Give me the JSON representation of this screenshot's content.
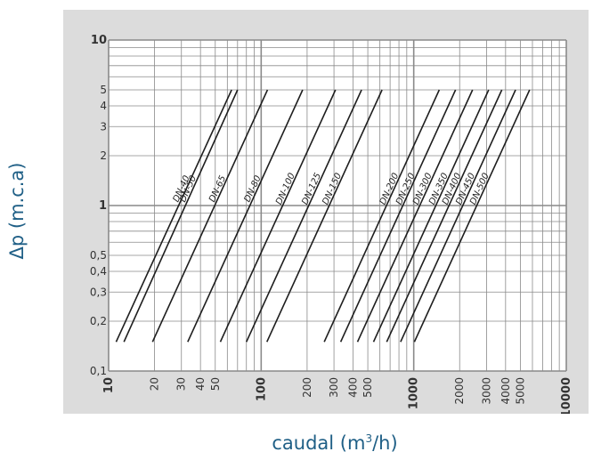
{
  "axes": {
    "ylabel": "Δp (m.c.a)",
    "xlabel_main": "caudal (m",
    "xlabel_sup": "3",
    "xlabel_end": "/h)"
  },
  "colors": {
    "panel": "#dcdcdc",
    "plot": "#ffffff",
    "grid": "#8a8a8a",
    "line": "#1e1e1e",
    "label": "#1f5f86"
  },
  "chart_data": {
    "type": "line",
    "title": "",
    "xlabel": "caudal (m3/h)",
    "ylabel": "Δp (m.c.a)",
    "xscale": "log",
    "yscale": "log",
    "xlim": [
      10,
      10000
    ],
    "ylim": [
      0.1,
      10
    ],
    "grid": true,
    "x_ticks": [
      {
        "v": 10,
        "label": "10",
        "bold": true
      },
      {
        "v": 20,
        "label": "20",
        "bold": false
      },
      {
        "v": 30,
        "label": "30",
        "bold": false
      },
      {
        "v": 40,
        "label": "40",
        "bold": false
      },
      {
        "v": 50,
        "label": "50",
        "bold": false
      },
      {
        "v": 100,
        "label": "100",
        "bold": true
      },
      {
        "v": 200,
        "label": "200",
        "bold": false
      },
      {
        "v": 300,
        "label": "300",
        "bold": false
      },
      {
        "v": 400,
        "label": "400",
        "bold": false
      },
      {
        "v": 500,
        "label": "500",
        "bold": false
      },
      {
        "v": 1000,
        "label": "1000",
        "bold": true
      },
      {
        "v": 2000,
        "label": "2000",
        "bold": false
      },
      {
        "v": 3000,
        "label": "3000",
        "bold": false
      },
      {
        "v": 4000,
        "label": "4000",
        "bold": false
      },
      {
        "v": 5000,
        "label": "5000",
        "bold": false
      },
      {
        "v": 10000,
        "label": "10000",
        "bold": true
      }
    ],
    "y_ticks": [
      {
        "v": 0.1,
        "label": "0,1",
        "bold": false
      },
      {
        "v": 0.2,
        "label": "0,2",
        "bold": false
      },
      {
        "v": 0.3,
        "label": "0,3",
        "bold": false
      },
      {
        "v": 0.4,
        "label": "0,4",
        "bold": false
      },
      {
        "v": 0.5,
        "label": "0,5",
        "bold": false
      },
      {
        "v": 1,
        "label": "1",
        "bold": true
      },
      {
        "v": 2,
        "label": "2",
        "bold": false
      },
      {
        "v": 3,
        "label": "3",
        "bold": false
      },
      {
        "v": 4,
        "label": "4",
        "bold": false
      },
      {
        "v": 5,
        "label": "5",
        "bold": false
      },
      {
        "v": 10,
        "label": "10",
        "bold": true
      }
    ],
    "series": [
      {
        "name": "DN-40",
        "x": [
          11.2,
          64.0
        ],
        "y": [
          0.15,
          5
        ]
      },
      {
        "name": "DN-50",
        "x": [
          12.6,
          70.0
        ],
        "y": [
          0.15,
          5
        ]
      },
      {
        "name": "DN-65",
        "x": [
          19.4,
          110.0
        ],
        "y": [
          0.15,
          5
        ]
      },
      {
        "name": "DN-80",
        "x": [
          33.0,
          187.0
        ],
        "y": [
          0.15,
          5
        ]
      },
      {
        "name": "DN-100",
        "x": [
          54.0,
          307.0
        ],
        "y": [
          0.15,
          5
        ]
      },
      {
        "name": "DN-125",
        "x": [
          80.0,
          455.0
        ],
        "y": [
          0.15,
          5
        ]
      },
      {
        "name": "DN-150",
        "x": [
          109.0,
          620.0
        ],
        "y": [
          0.15,
          5
        ]
      },
      {
        "name": "DN-200",
        "x": [
          259.0,
          1470.0
        ],
        "y": [
          0.15,
          5
        ]
      },
      {
        "name": "DN-250",
        "x": [
          332.0,
          1880.0
        ],
        "y": [
          0.15,
          5
        ]
      },
      {
        "name": "DN-300",
        "x": [
          428.0,
          2430.0
        ],
        "y": [
          0.15,
          5
        ]
      },
      {
        "name": "DN-350",
        "x": [
          545.0,
          3100.0
        ],
        "y": [
          0.15,
          5
        ]
      },
      {
        "name": "DN-400",
        "x": [
          665.0,
          3780.0
        ],
        "y": [
          0.15,
          5
        ]
      },
      {
        "name": "DN-450",
        "x": [
          820.0,
          4650.0
        ],
        "y": [
          0.15,
          5
        ]
      },
      {
        "name": "DN-500",
        "x": [
          1010.0,
          5750.0
        ],
        "y": [
          0.15,
          5
        ]
      }
    ]
  }
}
